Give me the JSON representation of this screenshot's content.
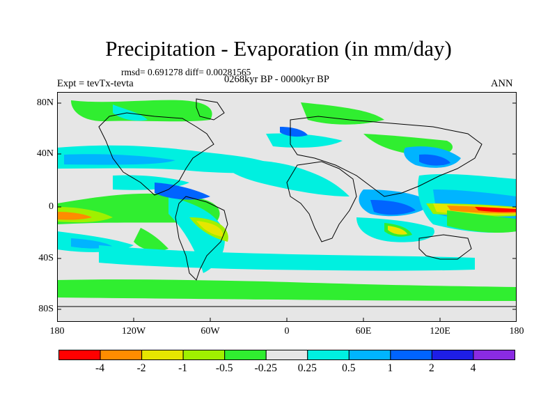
{
  "title": "Precipitation - Evaporation (in mm/day)",
  "stats_line": "rmsd= 0.691278 diff= 0.00281565",
  "experiment": "Expt = tevTx-tevta",
  "period": "0268kyr BP - 0000kyr BP",
  "season": "ANN",
  "lat_labels": [
    "80N",
    "40N",
    "0",
    "40S",
    "80S"
  ],
  "lon_labels": [
    "180",
    "120W",
    "60W",
    "0",
    "60E",
    "120E",
    "180"
  ],
  "colorbar": {
    "labels": [
      "-4",
      "-2",
      "-1",
      "-0.5",
      "-0.25",
      "0.25",
      "0.5",
      "1",
      "2",
      "4"
    ],
    "colors": [
      "#ff0000",
      "#ff8c00",
      "#e6e600",
      "#a0f000",
      "#30ee30",
      "#e6e6e6",
      "#00f0e0",
      "#00b4ff",
      "#0064ff",
      "#1e1ee6",
      "#8a2be2"
    ]
  }
}
